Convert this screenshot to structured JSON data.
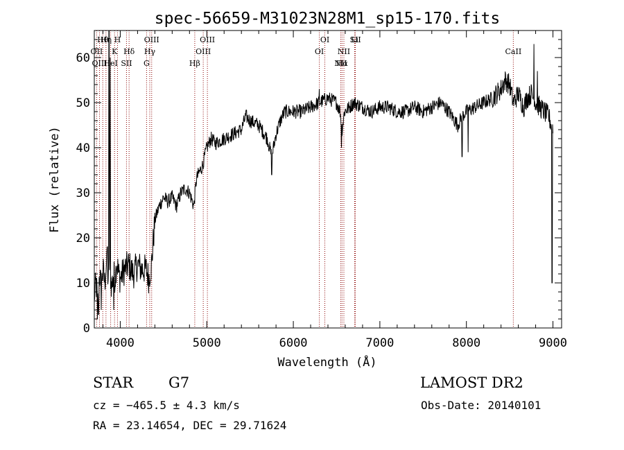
{
  "chart_data": {
    "type": "line",
    "title": "spec-56659-M31023N28M1_sp15-170.fits",
    "xlabel": "Wavelength (Å)",
    "ylabel": "Flux (relative)",
    "xlim": [
      3700,
      9100
    ],
    "ylim": [
      0,
      66
    ],
    "xticks": [
      4000,
      5000,
      6000,
      7000,
      8000,
      9000
    ],
    "yticks": [
      0,
      10,
      20,
      30,
      40,
      50,
      60
    ],
    "grid": false,
    "line_color": "#000000",
    "marker_color": "#8b0000",
    "anchors": [
      [
        3700,
        7
      ],
      [
        3720,
        10
      ],
      [
        3740,
        6
      ],
      [
        3760,
        12
      ],
      [
        3780,
        9
      ],
      [
        3800,
        13
      ],
      [
        3820,
        10
      ],
      [
        3840,
        14
      ],
      [
        3860,
        11
      ],
      [
        3880,
        13
      ],
      [
        3900,
        9
      ],
      [
        3920,
        12
      ],
      [
        3940,
        11
      ],
      [
        3960,
        15
      ],
      [
        3980,
        12
      ],
      [
        4000,
        11
      ],
      [
        4050,
        13
      ],
      [
        4100,
        14
      ],
      [
        4150,
        12
      ],
      [
        4200,
        14
      ],
      [
        4250,
        13
      ],
      [
        4300,
        13
      ],
      [
        4330,
        11
      ],
      [
        4360,
        14
      ],
      [
        4400,
        24
      ],
      [
        4450,
        27
      ],
      [
        4500,
        29
      ],
      [
        4550,
        28
      ],
      [
        4600,
        29
      ],
      [
        4650,
        27
      ],
      [
        4700,
        30
      ],
      [
        4750,
        31
      ],
      [
        4800,
        30
      ],
      [
        4850,
        27
      ],
      [
        4880,
        33
      ],
      [
        4900,
        34
      ],
      [
        4950,
        36
      ],
      [
        5000,
        40
      ],
      [
        5050,
        42
      ],
      [
        5100,
        41
      ],
      [
        5200,
        42
      ],
      [
        5300,
        43
      ],
      [
        5400,
        44
      ],
      [
        5450,
        47
      ],
      [
        5500,
        46
      ],
      [
        5600,
        45
      ],
      [
        5700,
        42
      ],
      [
        5750,
        38
      ],
      [
        5800,
        43
      ],
      [
        5850,
        46
      ],
      [
        5900,
        48
      ],
      [
        6000,
        48
      ],
      [
        6100,
        48
      ],
      [
        6200,
        49
      ],
      [
        6300,
        50
      ],
      [
        6400,
        51
      ],
      [
        6500,
        50
      ],
      [
        6540,
        48
      ],
      [
        6563,
        44
      ],
      [
        6590,
        48
      ],
      [
        6650,
        49
      ],
      [
        6700,
        50
      ],
      [
        6800,
        49
      ],
      [
        6900,
        48
      ],
      [
        7000,
        49
      ],
      [
        7100,
        49
      ],
      [
        7200,
        48
      ],
      [
        7300,
        48
      ],
      [
        7400,
        49
      ],
      [
        7500,
        48
      ],
      [
        7600,
        49
      ],
      [
        7700,
        50
      ],
      [
        7800,
        48
      ],
      [
        7900,
        45
      ],
      [
        7950,
        47
      ],
      [
        8000,
        48
      ],
      [
        8100,
        49
      ],
      [
        8200,
        50
      ],
      [
        8300,
        51
      ],
      [
        8400,
        53
      ],
      [
        8450,
        55
      ],
      [
        8500,
        54
      ],
      [
        8542,
        50
      ],
      [
        8600,
        52
      ],
      [
        8662,
        49
      ],
      [
        8700,
        51
      ],
      [
        8750,
        52
      ],
      [
        8800,
        50
      ],
      [
        8850,
        49
      ],
      [
        8900,
        48
      ],
      [
        8950,
        47
      ],
      [
        9000,
        44
      ]
    ],
    "spikes": [
      [
        3870,
        66
      ],
      [
        3885,
        60
      ],
      [
        3735,
        2
      ],
      [
        3750,
        3
      ],
      [
        3780,
        4
      ],
      [
        3850,
        18
      ],
      [
        3925,
        4
      ],
      [
        4355,
        11
      ],
      [
        5750,
        34
      ],
      [
        6300,
        53
      ],
      [
        6555,
        40
      ],
      [
        7950,
        38
      ],
      [
        8020,
        39
      ],
      [
        8420,
        55
      ],
      [
        8780,
        63
      ],
      [
        8820,
        57
      ],
      [
        8990,
        10
      ]
    ],
    "spectral_lines": [
      {
        "label": "Hθ",
        "wavelength": 3798
      },
      {
        "label": "OII",
        "wavelength": 3727
      },
      {
        "label": "OIII",
        "wavelength": 3760
      },
      {
        "label": "Hη",
        "wavelength": 3835
      },
      {
        "label": "K",
        "wavelength": 3934
      },
      {
        "label": "HeI",
        "wavelength": 3889
      },
      {
        "label": "H",
        "wavelength": 3968
      },
      {
        "label": "Hδ",
        "wavelength": 4102
      },
      {
        "label": "SII",
        "wavelength": 4072
      },
      {
        "label": "OIII",
        "wavelength": 4363
      },
      {
        "label": "Hγ",
        "wavelength": 4341
      },
      {
        "label": "G",
        "wavelength": 4304
      },
      {
        "label": "OIII",
        "wavelength": 5007
      },
      {
        "label": "OIII",
        "wavelength": 4959
      },
      {
        "label": "Hβ",
        "wavelength": 4861
      },
      {
        "label": "OI",
        "wavelength": 6364
      },
      {
        "label": "OI",
        "wavelength": 6300
      },
      {
        "label": "NII",
        "wavelength": 6548
      },
      {
        "label": "Li",
        "wavelength": 6708
      },
      {
        "label": "NII",
        "wavelength": 6584
      },
      {
        "label": "Hα",
        "wavelength": 6563
      },
      {
        "label": "SII",
        "wavelength": 6717
      },
      {
        "label": "CaII",
        "wavelength": 8542
      }
    ]
  },
  "info": {
    "class": "STAR",
    "subclass": "G7",
    "survey": "LAMOST DR2",
    "cz": "cz = −465.5 ± 4.3 km/s",
    "obs_date": "Obs-Date: 20140101",
    "coords": "RA =  23.14654, DEC =  29.71624"
  }
}
